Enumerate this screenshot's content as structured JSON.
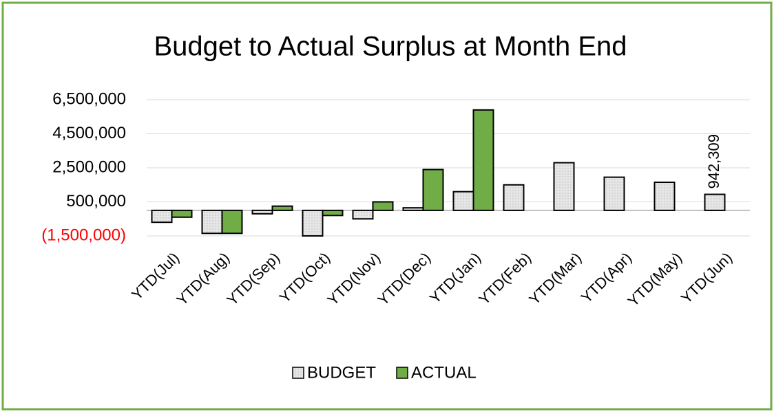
{
  "chart_data": {
    "type": "bar",
    "title": "Budget to Actual Surplus at Month End",
    "categories": [
      "YTD(Jul)",
      "YTD(Aug)",
      "YTD(Sep)",
      "YTD(Oct)",
      "YTD(Nov)",
      "YTD(Dec)",
      "YTD(Jan)",
      "YTD(Feb)",
      "YTD(Mar)",
      "YTD(Apr)",
      "YTD(May)",
      "YTD(Jun)"
    ],
    "series": [
      {
        "name": "BUDGET",
        "color": "#e3e3e3",
        "values": [
          -700000,
          -1350000,
          -200000,
          -1500000,
          -500000,
          150000,
          1100000,
          1500000,
          2800000,
          1950000,
          1650000,
          942309
        ],
        "value_labels": [
          null,
          null,
          null,
          null,
          null,
          null,
          null,
          null,
          null,
          null,
          null,
          "942,309"
        ]
      },
      {
        "name": "ACTUAL",
        "color": "#70ad47",
        "values": [
          -400000,
          -1350000,
          250000,
          -300000,
          500000,
          2400000,
          5900000,
          null,
          null,
          null,
          null,
          null
        ]
      }
    ],
    "ylim": [
      -1500000,
      6500000
    ],
    "yticks": [
      {
        "value": -1500000,
        "label": "(1,500,000)"
      },
      {
        "value": 500000,
        "label": "500,000"
      },
      {
        "value": 2500000,
        "label": "2,500,000"
      },
      {
        "value": 4500000,
        "label": "4,500,000"
      },
      {
        "value": 6500000,
        "label": "6,500,000"
      }
    ],
    "negative_tick_color": "#ff0000",
    "grid": true,
    "legend": "bottom"
  }
}
